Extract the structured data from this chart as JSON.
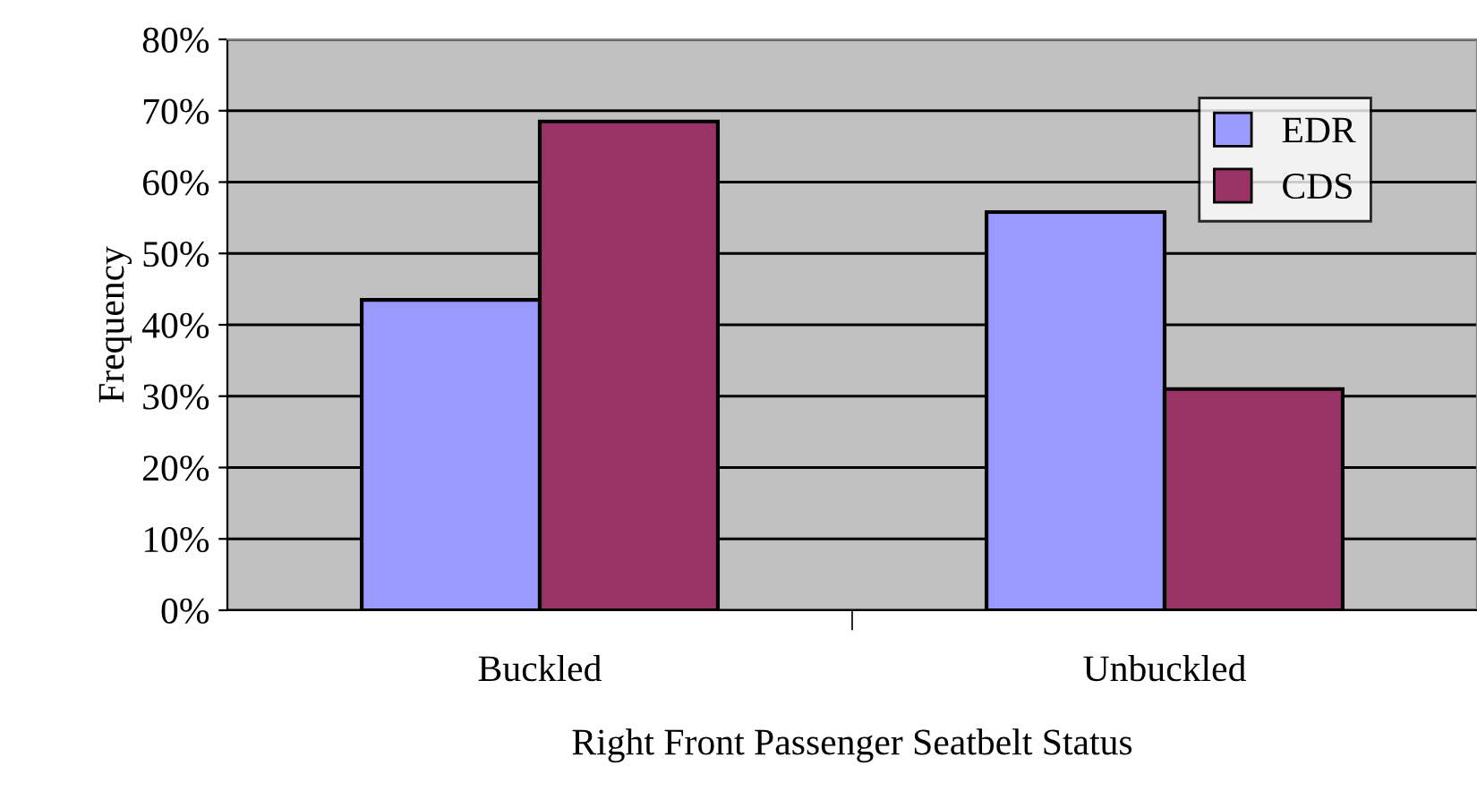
{
  "chart_data": {
    "type": "bar",
    "xlabel": "Right Front Passenger Seatbelt Status",
    "ylabel": "Frequency",
    "categories": [
      "Buckled",
      "Unbuckled"
    ],
    "series": [
      {
        "name": "EDR",
        "color": "#9999ff",
        "values": [
          43.5,
          55.8
        ]
      },
      {
        "name": "CDS",
        "color": "#993366",
        "values": [
          68.5,
          31
        ]
      }
    ],
    "ylim": [
      0,
      80
    ],
    "yticks": [
      {
        "value": 0,
        "label": "0%"
      },
      {
        "value": 10,
        "label": "10%"
      },
      {
        "value": 20,
        "label": "20%"
      },
      {
        "value": 30,
        "label": "30%"
      },
      {
        "value": 40,
        "label": "40%"
      },
      {
        "value": 50,
        "label": "50%"
      },
      {
        "value": 60,
        "label": "60%"
      },
      {
        "value": 70,
        "label": "70%"
      },
      {
        "value": 80,
        "label": "80%"
      }
    ],
    "grid": "y",
    "legend": "top right"
  }
}
